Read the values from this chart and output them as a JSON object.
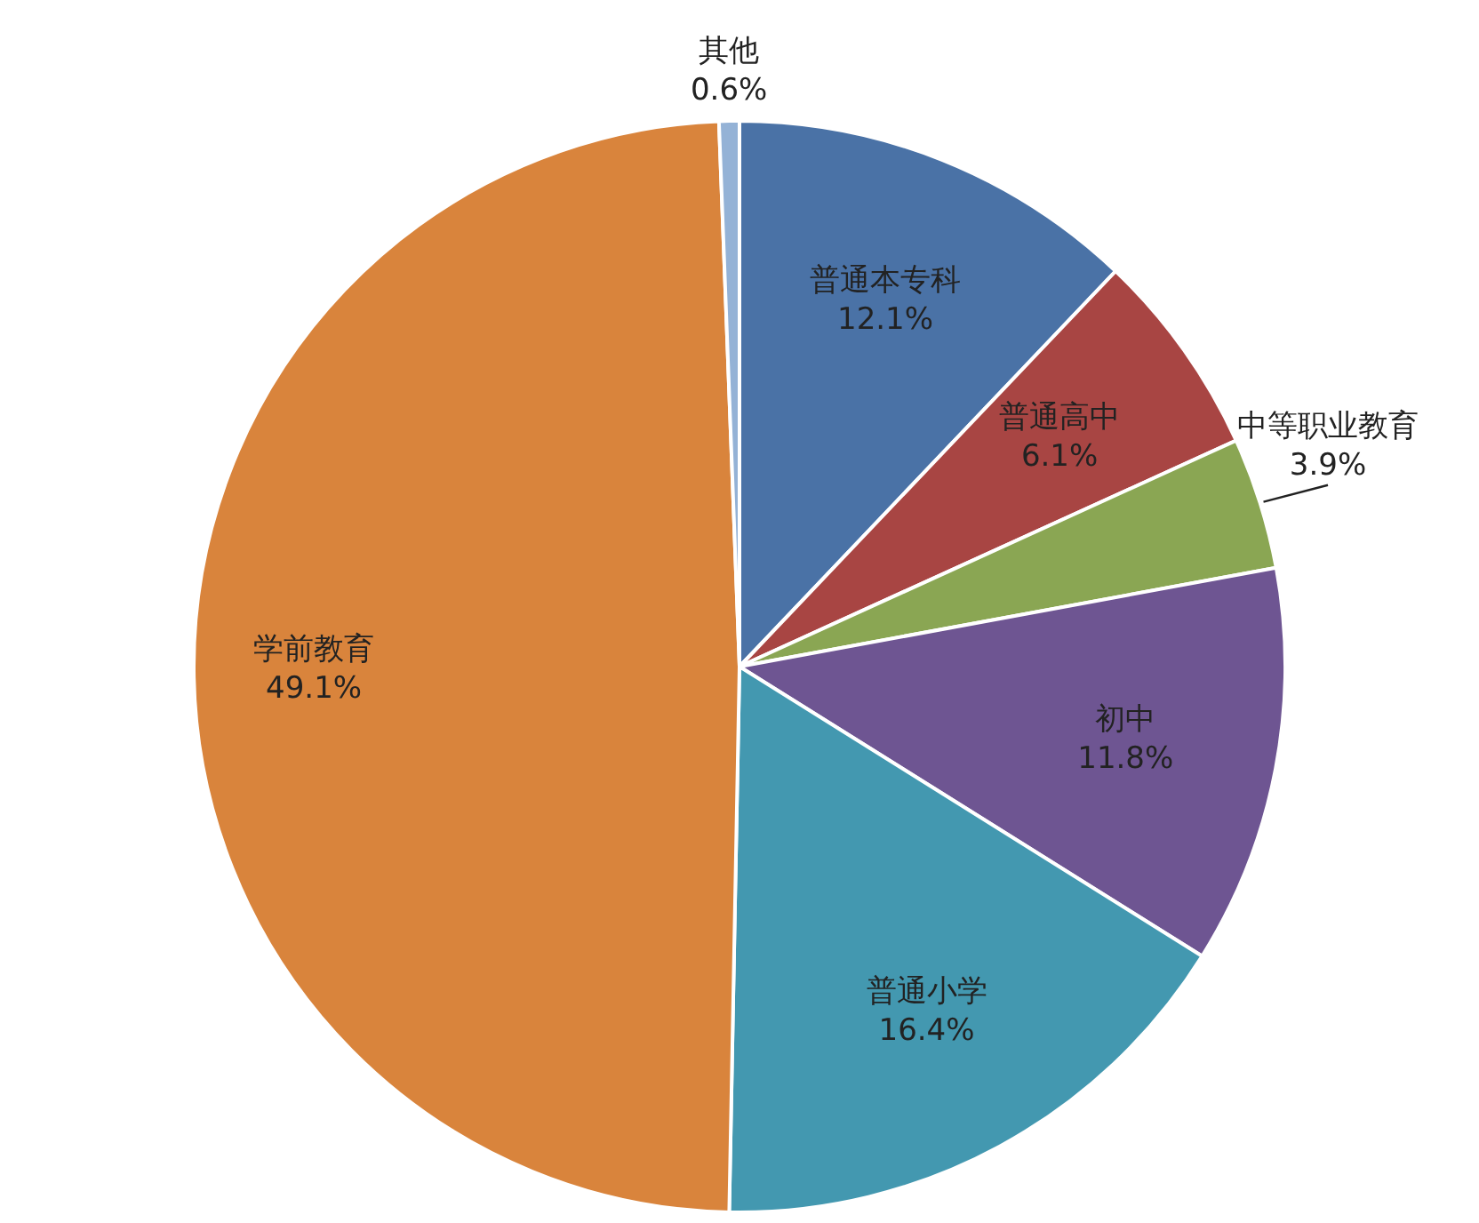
{
  "chart_data": {
    "type": "pie",
    "categories": [
      "普通本专科",
      "普通高中",
      "中等职业教育",
      "初中",
      "普通小学",
      "学前教育",
      "其他"
    ],
    "values": [
      12.1,
      6.1,
      3.9,
      11.8,
      16.4,
      49.1,
      0.6
    ],
    "value_labels": [
      "12.1%",
      "6.1%",
      "3.9%",
      "11.8%",
      "16.4%",
      "49.1%",
      "0.6%"
    ],
    "colors": [
      "#4a72a6",
      "#a84543",
      "#8aa653",
      "#6e5592",
      "#4398b0",
      "#d9843c",
      "#94b2d6"
    ],
    "legend": false
  }
}
